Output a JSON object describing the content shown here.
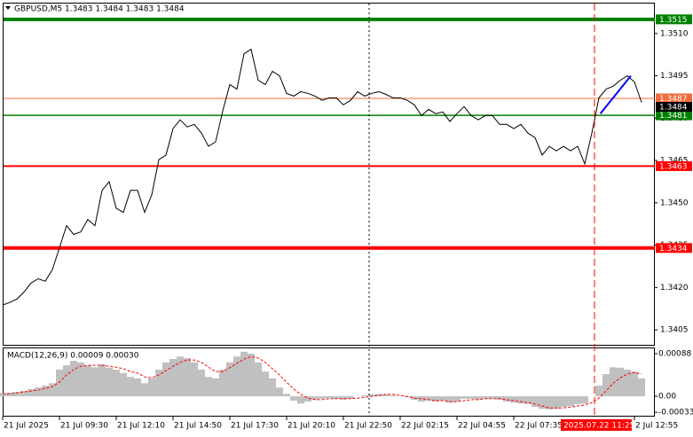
{
  "chart_data": [
    {
      "type": "line",
      "title": "GBPUSD,M5  1.3483 1.3484 1.3483 1.3484",
      "categories": [
        "21 Jul 2025",
        null,
        null,
        null,
        null,
        null,
        null,
        null,
        "21 Jul 09:30",
        null,
        null,
        null,
        null,
        null,
        null,
        null,
        "21 Jul 12:10",
        null,
        null,
        null,
        null,
        null,
        null,
        null,
        "21 Jul 14:50",
        null,
        null,
        null,
        null,
        null,
        null,
        null,
        "21 Jul 17:30",
        null,
        null,
        null,
        null,
        null,
        null,
        null,
        "21 Jul 20:10",
        null,
        null,
        null,
        null,
        null,
        null,
        null,
        "21 Jul 22:50",
        null,
        null,
        null,
        null,
        null,
        null,
        null,
        "22 Jul 02:15",
        null,
        null,
        null,
        null,
        null,
        null,
        null,
        "22 Jul 04:55",
        null,
        null,
        null,
        null,
        null,
        null,
        null,
        "22 Jul 07:35",
        null,
        null,
        null,
        null,
        null,
        null,
        null,
        null,
        null,
        null,
        null,
        null,
        null,
        null,
        null,
        null,
        "2 Jul 12:55",
        null
      ],
      "series": [
        {
          "color": "#000000",
          "values": [
            1.34138,
            1.34147,
            1.34159,
            1.34184,
            1.34216,
            1.34231,
            1.34222,
            1.34263,
            1.34341,
            1.34419,
            1.34388,
            1.34397,
            1.34441,
            1.34419,
            1.34544,
            1.34575,
            1.34481,
            1.34466,
            1.34544,
            1.34544,
            1.34466,
            1.34528,
            1.34653,
            1.34669,
            1.34763,
            1.34794,
            1.34769,
            1.34778,
            1.34747,
            1.347,
            1.34716,
            1.34825,
            1.34919,
            1.34903,
            1.35028,
            1.35044,
            1.34934,
            1.34919,
            1.34966,
            1.3495,
            1.34888,
            1.34878,
            1.34894,
            1.34888,
            1.34878,
            1.34863,
            1.34872,
            1.34872,
            1.34847,
            1.34863,
            1.34894,
            1.34878,
            1.34888,
            1.34894,
            1.34884,
            1.34872,
            1.34872,
            1.34863,
            1.34847,
            1.34809,
            1.34831,
            1.34816,
            1.34822,
            1.34788,
            1.34816,
            1.34841,
            1.34809,
            1.34794,
            1.34809,
            1.34809,
            1.34778,
            1.34778,
            1.34763,
            1.34778,
            1.34747,
            1.34731,
            1.34669,
            1.347,
            1.34684,
            1.347,
            1.34684,
            1.347,
            1.34638,
            1.34747,
            1.34872,
            1.34903,
            1.34913,
            1.34934,
            1.3495,
            1.34928,
            1.34856
          ]
        }
      ],
      "ylim": [
        1.33997,
        1.35206
      ],
      "yticks": [
        {
          "value": 1.351,
          "label": "1.3510"
        },
        {
          "value": 1.3495,
          "label": "1.3495"
        },
        {
          "value": 1.348,
          "label": "1.3480"
        },
        {
          "value": 1.3465,
          "label": "1.3465"
        },
        {
          "value": 1.345,
          "label": "1.3450"
        },
        {
          "value": 1.3435,
          "label": "1.3435"
        },
        {
          "value": 1.342,
          "label": "1.3420"
        },
        {
          "value": 1.3405,
          "label": "1.3405"
        }
      ],
      "levels": [
        {
          "value": 1.3515,
          "color": "#008000",
          "width": 4
        },
        {
          "value": 1.3487,
          "color": "#f26b3a",
          "width": 1
        },
        {
          "value": 1.3481,
          "color": "#008000",
          "width": 1.5
        },
        {
          "value": 1.3463,
          "color": "#ff0000",
          "width": 2
        },
        {
          "value": 1.3434,
          "color": "#ff0000",
          "width": 4
        }
      ],
      "bid": 1.3484,
      "trendline": {
        "color": "#0000ff",
        "x": [
          84.2,
          88.5
        ],
        "values": [
          1.34816,
          1.3495
        ]
      },
      "crosshair_time": "2025.07.22 11:25"
    },
    {
      "type": "macd",
      "title": "MACD(12,26,9) 0.00009 0.00030",
      "series": [
        {
          "color": "#c0c0c0",
          "values": [
            7e-05,
            7e-05,
            9e-05,
            0.00011,
            0.00015,
            0.00018,
            0.00022,
            0.00027,
            0.00055,
            0.00064,
            0.00073,
            0.0007,
            0.00064,
            0.0006,
            0.00066,
            0.00059,
            0.00055,
            0.00048,
            0.0004,
            0.00037,
            0.00027,
            0.00037,
            0.00055,
            0.0007,
            0.00077,
            0.00082,
            0.00079,
            0.0007,
            0.00055,
            0.0004,
            0.00037,
            0.00055,
            0.0007,
            0.00082,
            0.00092,
            0.00088,
            0.0007,
            0.00051,
            0.00037,
            0.00018,
            5e-05,
            -9e-05,
            -0.00015,
            -0.00011,
            -7e-05,
            -5e-05,
            -4e-05,
            -5e-05,
            -7e-05,
            -5e-05,
            0,
            2e-05,
            4e-05,
            5e-05,
            4e-05,
            2e-05,
            0,
            -2e-05,
            -7e-05,
            -0.00011,
            -9e-05,
            -0.00011,
            -9e-05,
            -0.00013,
            -0.00011,
            -5e-05,
            -5e-05,
            -7e-05,
            -5e-05,
            -4e-05,
            -7e-05,
            -0.00011,
            -0.00013,
            -0.00015,
            -0.00016,
            -0.00022,
            -0.00026,
            -0.00027,
            -0.00026,
            -0.00022,
            -0.0002,
            -0.00016,
            -0.00015,
            0,
            0.00022,
            0.00046,
            0.0006,
            0.00059,
            0.00055,
            0.00051,
            0.00037
          ]
        },
        {
          "color": "#ff0000",
          "values": [
            5e-05,
            5e-05,
            7e-05,
            9e-05,
            0.00011,
            0.00013,
            0.00016,
            0.0002,
            0.00029,
            0.00044,
            0.00055,
            0.00062,
            0.00064,
            0.00064,
            0.00064,
            0.00062,
            0.0006,
            0.00057,
            0.00051,
            0.00048,
            0.0004,
            0.00038,
            0.00044,
            0.00053,
            0.00062,
            0.0007,
            0.00075,
            0.00075,
            0.0007,
            0.0006,
            0.00051,
            0.00051,
            0.00059,
            0.00068,
            0.00077,
            0.00082,
            0.00079,
            0.0007,
            0.00057,
            0.00044,
            0.00029,
            0.00015,
            4e-05,
            -4e-05,
            -7e-05,
            -7e-05,
            -5e-05,
            -5e-05,
            -5e-05,
            -5e-05,
            -4e-05,
            -2e-05,
            0,
            2e-05,
            4e-05,
            4e-05,
            2e-05,
            0,
            -4e-05,
            -5e-05,
            -7e-05,
            -9e-05,
            -9e-05,
            -0.00011,
            -0.00011,
            -9e-05,
            -7e-05,
            -7e-05,
            -5e-05,
            -5e-05,
            -5e-05,
            -7e-05,
            -9e-05,
            -0.00011,
            -0.00013,
            -0.00016,
            -0.0002,
            -0.00024,
            -0.00024,
            -0.00024,
            -0.00022,
            -0.0002,
            -0.00018,
            -0.00013,
            -4e-05,
            0.00011,
            0.00027,
            0.00038,
            0.00046,
            0.00049,
            0.00046
          ]
        }
      ],
      "ylim": [
        -0.00042,
        0.00099
      ],
      "yticks": [
        0.00088,
        {
          "value": 0,
          "label": "0.00"
        },
        -0.00033
      ]
    }
  ]
}
